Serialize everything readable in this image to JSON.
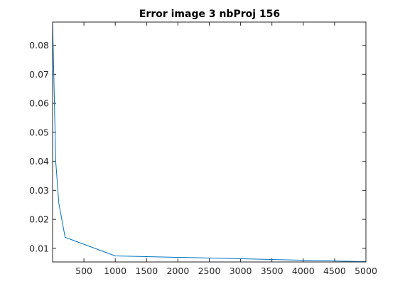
{
  "chart_data": {
    "type": "line",
    "title": "Error image 3 nbProj 156",
    "xlabel": "",
    "ylabel": "",
    "xlim": [
      0,
      5000
    ],
    "ylim": [
      0.0053,
      0.088
    ],
    "xticks": [
      500,
      1000,
      1500,
      2000,
      2500,
      3000,
      3500,
      4000,
      4500,
      5000
    ],
    "yticks": [
      0.01,
      0.02,
      0.03,
      0.04,
      0.05,
      0.06,
      0.07,
      0.08
    ],
    "grid": false,
    "series": [
      {
        "color": "#0072BD",
        "x": [
          1,
          10,
          50,
          100,
          200,
          1000,
          5000
        ],
        "y": [
          0.088,
          0.079,
          0.04,
          0.0255,
          0.0138,
          0.0074,
          0.0054
        ]
      }
    ]
  }
}
